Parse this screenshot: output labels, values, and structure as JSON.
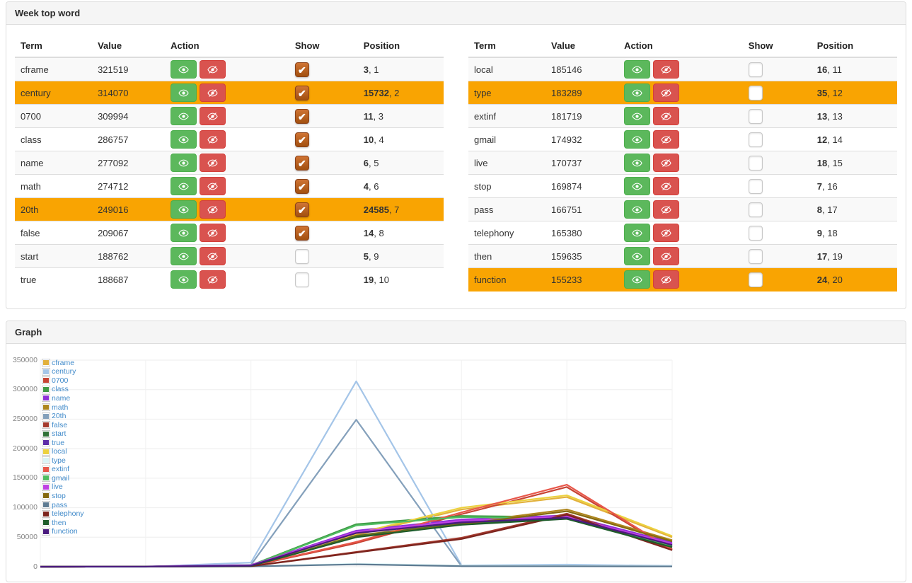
{
  "panels": {
    "words": {
      "title": "Week top word"
    },
    "graph": {
      "title": "Graph"
    }
  },
  "table": {
    "columns": [
      "Term",
      "Value",
      "Action",
      "Show",
      "Position"
    ],
    "action_buttons": [
      {
        "name": "show",
        "icon": "eye-icon",
        "color": "#5cb85c"
      },
      {
        "name": "hide",
        "icon": "eye-slash-icon",
        "color": "#d9534f"
      }
    ],
    "highlight_color": "#f9a402",
    "left_rows": [
      {
        "term": "cframe",
        "value": "321519",
        "show": true,
        "position": [
          "3",
          "1"
        ],
        "highlight": false
      },
      {
        "term": "century",
        "value": "314070",
        "show": true,
        "position": [
          "15732",
          "2"
        ],
        "highlight": true
      },
      {
        "term": "0700",
        "value": "309994",
        "show": true,
        "position": [
          "11",
          "3"
        ],
        "highlight": false
      },
      {
        "term": "class",
        "value": "286757",
        "show": true,
        "position": [
          "10",
          "4"
        ],
        "highlight": false
      },
      {
        "term": "name",
        "value": "277092",
        "show": true,
        "position": [
          "6",
          "5"
        ],
        "highlight": false
      },
      {
        "term": "math",
        "value": "274712",
        "show": true,
        "position": [
          "4",
          "6"
        ],
        "highlight": false
      },
      {
        "term": "20th",
        "value": "249016",
        "show": true,
        "position": [
          "24585",
          "7"
        ],
        "highlight": true
      },
      {
        "term": "false",
        "value": "209067",
        "show": true,
        "position": [
          "14",
          "8"
        ],
        "highlight": false
      },
      {
        "term": "start",
        "value": "188762",
        "show": false,
        "position": [
          "5",
          "9"
        ],
        "highlight": false
      },
      {
        "term": "true",
        "value": "188687",
        "show": false,
        "position": [
          "19",
          "10"
        ],
        "highlight": false
      }
    ],
    "right_rows": [
      {
        "term": "local",
        "value": "185146",
        "show": false,
        "position": [
          "16",
          "11"
        ],
        "highlight": false
      },
      {
        "term": "type",
        "value": "183289",
        "show": false,
        "position": [
          "35",
          "12"
        ],
        "highlight": true
      },
      {
        "term": "extinf",
        "value": "181719",
        "show": false,
        "position": [
          "13",
          "13"
        ],
        "highlight": false
      },
      {
        "term": "gmail",
        "value": "174932",
        "show": false,
        "position": [
          "12",
          "14"
        ],
        "highlight": false
      },
      {
        "term": "live",
        "value": "170737",
        "show": false,
        "position": [
          "18",
          "15"
        ],
        "highlight": false
      },
      {
        "term": "stop",
        "value": "169874",
        "show": false,
        "position": [
          "7",
          "16"
        ],
        "highlight": false
      },
      {
        "term": "pass",
        "value": "166751",
        "show": false,
        "position": [
          "8",
          "17"
        ],
        "highlight": false
      },
      {
        "term": "telephony",
        "value": "165380",
        "show": false,
        "position": [
          "9",
          "18"
        ],
        "highlight": false
      },
      {
        "term": "then",
        "value": "159635",
        "show": false,
        "position": [
          "17",
          "19"
        ],
        "highlight": false
      },
      {
        "term": "function",
        "value": "155233",
        "show": false,
        "position": [
          "24",
          "20"
        ],
        "highlight": true
      }
    ]
  },
  "chart_data": {
    "type": "line",
    "title": "Graph",
    "xlabel": "",
    "ylabel": "",
    "x_point_count": 7,
    "x_tick_labels_visible": false,
    "ylim": [
      0,
      350000
    ],
    "yticks": [
      0,
      50000,
      100000,
      150000,
      200000,
      250000,
      300000,
      350000
    ],
    "grid": true,
    "legend_position": "top-left",
    "series": [
      {
        "name": "cframe",
        "color": "#e2b13c",
        "values": [
          0,
          300,
          1800,
          54000,
          97000,
          118000,
          50000
        ]
      },
      {
        "name": "century",
        "color": "#a4c5e8",
        "values": [
          0,
          0,
          7000,
          314070,
          2400,
          3600,
          1500
        ]
      },
      {
        "name": "0700",
        "color": "#c74334",
        "values": [
          0,
          200,
          1200,
          40000,
          89000,
          135000,
          28000
        ]
      },
      {
        "name": "class",
        "color": "#3f9b45",
        "values": [
          0,
          400,
          2500,
          72000,
          86000,
          84000,
          36000
        ]
      },
      {
        "name": "name",
        "color": "#8e30d8",
        "values": [
          0,
          500,
          3000,
          61000,
          80000,
          87000,
          41000
        ]
      },
      {
        "name": "math",
        "color": "#ad851c",
        "values": [
          0,
          200,
          1500,
          53000,
          74000,
          97000,
          45000
        ]
      },
      {
        "name": "20th",
        "color": "#84a0bb",
        "values": [
          0,
          0,
          3000,
          249016,
          800,
          1200,
          700
        ]
      },
      {
        "name": "false",
        "color": "#a43a2e",
        "values": [
          0,
          200,
          1000,
          25000,
          49000,
          90000,
          30000
        ]
      },
      {
        "name": "start",
        "color": "#2f7036",
        "values": [
          0,
          200,
          1500,
          52000,
          73000,
          83000,
          35000
        ]
      },
      {
        "name": "true",
        "color": "#5c2ca8",
        "values": [
          0,
          300,
          2000,
          58000,
          76000,
          84000,
          38000
        ]
      },
      {
        "name": "local",
        "color": "#ecd13f",
        "values": [
          0,
          300,
          2000,
          56000,
          100000,
          121000,
          52000
        ]
      },
      {
        "name": "type",
        "color": "#d9f3f6",
        "values": [
          0,
          100,
          800,
          5000,
          2000,
          1500,
          1000
        ]
      },
      {
        "name": "extinf",
        "color": "#e8574a",
        "values": [
          0,
          200,
          1500,
          42000,
          92000,
          139000,
          29000
        ]
      },
      {
        "name": "gmail",
        "color": "#4fbd61",
        "values": [
          0,
          300,
          2000,
          70000,
          84000,
          82000,
          34000
        ]
      },
      {
        "name": "live",
        "color": "#bf3fe3",
        "values": [
          0,
          400,
          2500,
          59000,
          78000,
          85000,
          39000
        ]
      },
      {
        "name": "stop",
        "color": "#84690f",
        "values": [
          0,
          200,
          1200,
          51000,
          72000,
          94000,
          43000
        ]
      },
      {
        "name": "pass",
        "color": "#5d7a91",
        "values": [
          0,
          100,
          600,
          4000,
          1000,
          800,
          500
        ]
      },
      {
        "name": "telephony",
        "color": "#7c241e",
        "values": [
          0,
          150,
          800,
          24000,
          47000,
          88000,
          28000
        ]
      },
      {
        "name": "then",
        "color": "#1e5c2a",
        "values": [
          0,
          150,
          1200,
          50000,
          71000,
          81000,
          33000
        ]
      },
      {
        "name": "function",
        "color": "#4a1a7e",
        "values": [
          0,
          250,
          1800,
          57000,
          75000,
          83000,
          37000
        ]
      }
    ]
  }
}
